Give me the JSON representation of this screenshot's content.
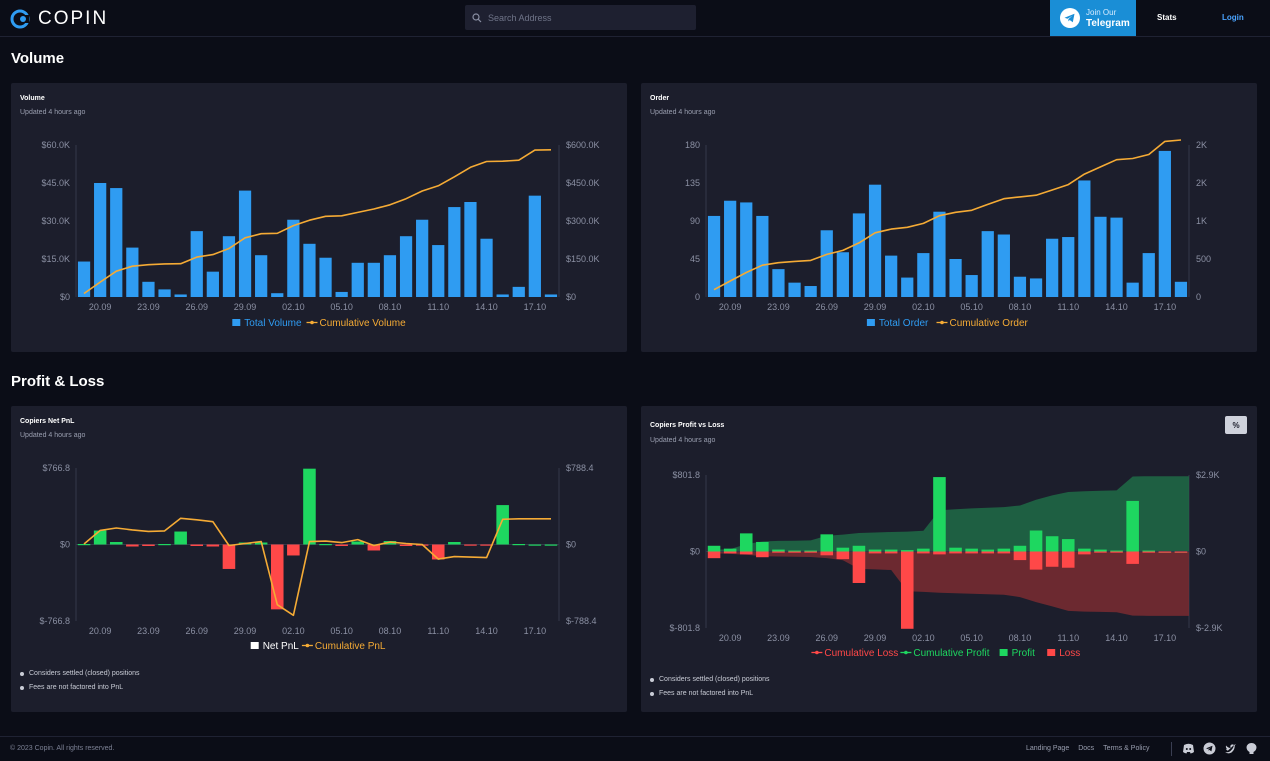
{
  "header": {
    "logo_text": "COPIN",
    "search_placeholder": "Search Address",
    "telegram_small": "Join Our",
    "telegram_big": "Telegram",
    "nav_stats": "Stats",
    "nav_login": "Login"
  },
  "sections": {
    "volume_title": "Volume",
    "pnl_title": "Profit & Loss"
  },
  "cards": {
    "volume": {
      "title": "Volume",
      "updated": "Updated 4 hours ago"
    },
    "order": {
      "title": "Order",
      "updated": "Updated 4 hours ago"
    },
    "net_pnl": {
      "title": "Copiers Net PnL",
      "updated": "Updated 4 hours ago",
      "notes": [
        "Considers settled (closed) positions",
        "Fees are not factored into PnL"
      ]
    },
    "profit_loss": {
      "title": "Copiers Profit vs Loss",
      "updated": "Updated 4 hours ago",
      "pct_label": "%",
      "notes": [
        "Considers settled (closed) positions",
        "Fees are not factored into PnL"
      ]
    }
  },
  "footer": {
    "copyright": "© 2023 Copin. All rights reserved.",
    "links": [
      "Landing Page",
      "Docs",
      "Terms & Policy"
    ]
  },
  "colors": {
    "bar_blue": "#2f9cf2",
    "line_orange": "#f5ab35",
    "profit_green": "#1ed760",
    "loss_red": "#ff4848"
  },
  "chart_data": [
    {
      "type": "bar",
      "title": "Volume",
      "x_ticks": [
        "20.09",
        "23.09",
        "26.09",
        "29.09",
        "02.10",
        "05.10",
        "08.10",
        "11.10",
        "14.10",
        "17.10"
      ],
      "y_left_ticks": [
        "$60.0K",
        "$45.0K",
        "$30.0K",
        "$15.0K",
        "$0"
      ],
      "y_right_ticks": [
        "$600.0K",
        "$450.0K",
        "$300.0K",
        "$150.0K",
        "$0"
      ],
      "ylim_left": [
        0,
        60000
      ],
      "ylim_right": [
        0,
        600000
      ],
      "legend": [
        "Total Volume",
        "Cumulative Volume"
      ],
      "series": [
        {
          "name": "Total Volume",
          "kind": "bar",
          "values": [
            14000,
            45000,
            43000,
            19500,
            6000,
            3000,
            1000,
            26000,
            10000,
            24000,
            42000,
            16500,
            1500,
            30500,
            21000,
            15500,
            2000,
            13500,
            13500,
            16500,
            24000,
            30500,
            20500,
            35500,
            37500,
            23000,
            1000,
            4000,
            40000,
            1000
          ]
        },
        {
          "name": "Cumulative Volume",
          "kind": "line",
          "values": [
            14000,
            59000,
            102000,
            121500,
            127500,
            130500,
            131500,
            157500,
            167500,
            191500,
            233500,
            250000,
            251500,
            282000,
            303000,
            318500,
            320500,
            334000,
            347500,
            364000,
            388000,
            418500,
            439000,
            474500,
            512000,
            535000,
            536000,
            540000,
            580000,
            581000
          ]
        }
      ]
    },
    {
      "type": "bar",
      "title": "Order",
      "x_ticks": [
        "20.09",
        "23.09",
        "26.09",
        "29.09",
        "02.10",
        "05.10",
        "08.10",
        "11.10",
        "14.10",
        "17.10"
      ],
      "y_left_ticks": [
        "180",
        "135",
        "90",
        "45",
        "0"
      ],
      "y_right_ticks": [
        "2K",
        "2K",
        "1K",
        "500",
        "0"
      ],
      "ylim_left": [
        0,
        180
      ],
      "ylim_right": [
        0,
        2000
      ],
      "legend": [
        "Total Order",
        "Cumulative Order"
      ],
      "series": [
        {
          "name": "Total Order",
          "kind": "bar",
          "values": [
            96,
            114,
            112,
            96,
            33,
            17,
            13,
            79,
            53,
            99,
            133,
            49,
            23,
            52,
            101,
            45,
            26,
            78,
            74,
            24,
            22,
            69,
            71,
            138,
            95,
            94,
            17,
            52,
            173,
            18
          ]
        },
        {
          "name": "Cumulative Order",
          "kind": "line",
          "values": [
            96,
            210,
            322,
            418,
            451,
            468,
            481,
            560,
            613,
            712,
            845,
            894,
            917,
            969,
            1070,
            1115,
            1141,
            1219,
            1293,
            1317,
            1339,
            1408,
            1479,
            1617,
            1712,
            1806,
            1823,
            1875,
            2048,
            2066
          ]
        }
      ]
    },
    {
      "type": "bar",
      "title": "Copiers Net PnL",
      "x_ticks": [
        "20.09",
        "23.09",
        "26.09",
        "29.09",
        "02.10",
        "05.10",
        "08.10",
        "11.10",
        "14.10",
        "17.10"
      ],
      "y_left_ticks": [
        "$766.8",
        "$0",
        "$-766.8"
      ],
      "y_right_ticks": [
        "$788.4",
        "$0",
        "$-788.4"
      ],
      "ylim_left": [
        -766.8,
        766.8
      ],
      "ylim_right": [
        -788.4,
        788.4
      ],
      "legend": [
        "Net PnL",
        "Cumulative PnL"
      ],
      "series": [
        {
          "name": "Net PnL",
          "kind": "bar",
          "values": [
            5,
            140,
            25,
            -20,
            -15,
            5,
            130,
            -15,
            -20,
            -245,
            20,
            20,
            -650,
            -110,
            760,
            5,
            -15,
            30,
            -60,
            35,
            -15,
            -10,
            -150,
            25,
            -5,
            -5,
            395,
            5,
            0,
            0
          ]
        },
        {
          "name": "Cumulative PnL",
          "kind": "line",
          "values": [
            5,
            145,
            170,
            150,
            135,
            140,
            270,
            255,
            235,
            -10,
            10,
            30,
            -620,
            -730,
            30,
            35,
            20,
            50,
            -10,
            25,
            10,
            0,
            -150,
            -125,
            -130,
            -135,
            260,
            265,
            265,
            265
          ]
        }
      ]
    },
    {
      "type": "bar",
      "title": "Copiers Profit vs Loss",
      "x_ticks": [
        "20.09",
        "23.09",
        "26.09",
        "29.09",
        "02.10",
        "05.10",
        "08.10",
        "11.10",
        "14.10",
        "17.10"
      ],
      "y_left_ticks": [
        "$801.8",
        "$0",
        "$-801.8"
      ],
      "y_right_ticks": [
        "$2.9K",
        "$0",
        "$-2.9K"
      ],
      "ylim_left": [
        -801.8,
        801.8
      ],
      "ylim_right": [
        -2900,
        2900
      ],
      "legend": [
        "Cumulative Loss",
        "Cumulative Profit",
        "Profit",
        "Loss"
      ],
      "series": [
        {
          "name": "Profit",
          "kind": "bar",
          "values": [
            60,
            30,
            190,
            100,
            20,
            10,
            10,
            180,
            40,
            60,
            20,
            20,
            15,
            30,
            780,
            40,
            30,
            20,
            30,
            60,
            220,
            160,
            130,
            30,
            20,
            10,
            530,
            10,
            0,
            0
          ]
        },
        {
          "name": "Loss",
          "kind": "bar",
          "values": [
            -70,
            -20,
            -30,
            -60,
            -10,
            -10,
            -10,
            -40,
            -80,
            -330,
            -20,
            -20,
            -810,
            -20,
            -30,
            -20,
            -20,
            -20,
            -20,
            -90,
            -190,
            -160,
            -170,
            -30,
            -10,
            -10,
            -130,
            -10,
            0,
            0
          ]
        },
        {
          "name": "Cumulative Profit",
          "kind": "area",
          "values": [
            60,
            90,
            280,
            380,
            400,
            410,
            420,
            600,
            640,
            700,
            720,
            740,
            755,
            785,
            1565,
            1605,
            1635,
            1655,
            1685,
            1745,
            1965,
            2125,
            2255,
            2285,
            2305,
            2315,
            2845,
            2855,
            2855,
            2855
          ]
        },
        {
          "name": "Cumulative Loss",
          "kind": "area",
          "values": [
            -70,
            -90,
            -120,
            -180,
            -190,
            -200,
            -210,
            -250,
            -330,
            -660,
            -680,
            -700,
            -1510,
            -1530,
            -1560,
            -1580,
            -1600,
            -1620,
            -1640,
            -1730,
            -1920,
            -2080,
            -2250,
            -2280,
            -2290,
            -2300,
            -2430,
            -2440,
            -2440,
            -2440
          ]
        }
      ]
    }
  ]
}
